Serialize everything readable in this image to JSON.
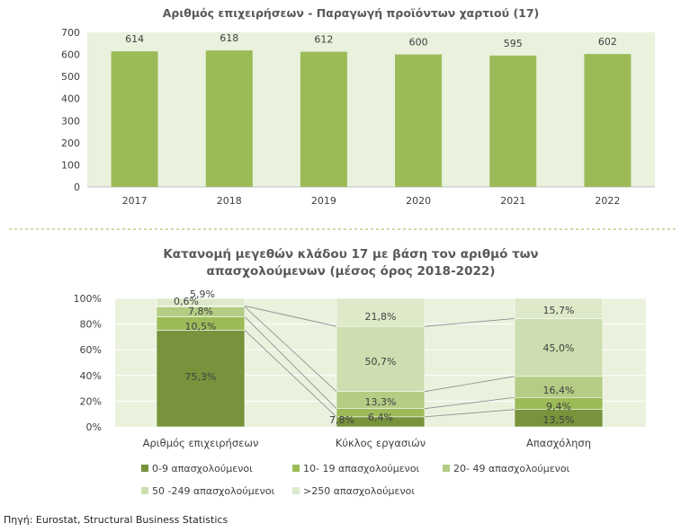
{
  "chart_data": [
    {
      "type": "bar",
      "title": "Αριθμός επιχειρήσεων - Παραγωγή προϊόντων χαρτιού (17)",
      "categories": [
        "2017",
        "2018",
        "2019",
        "2020",
        "2021",
        "2022"
      ],
      "values": [
        614,
        618,
        612,
        600,
        595,
        602
      ],
      "value_labels": [
        "614",
        "618",
        "612",
        "600",
        "595",
        "602"
      ],
      "ylim": [
        0,
        700
      ],
      "yticks": [
        "0",
        "100",
        "200",
        "300",
        "400",
        "500",
        "600",
        "700"
      ],
      "grid": false,
      "color": "#9bbb59",
      "plot_background": "#eaf1dd"
    },
    {
      "type": "bar",
      "stacked": true,
      "percent": true,
      "title_lines": [
        "Κατανομή μεγεθών κλάδου 17 με βάση τον αριθμό των",
        "απασχολούμενων (μέσος όρος 2018-2022)"
      ],
      "categories": [
        "Αριθμός επιχειρήσεων",
        "Κύκλος εργασιών",
        "Απασχόληση"
      ],
      "yticks": [
        "0%",
        "20%",
        "40%",
        "60%",
        "80%",
        "100%"
      ],
      "ylim": [
        0,
        100
      ],
      "grid": true,
      "legend_position": "bottom",
      "series": [
        {
          "name": "0-9 απασχολούμενοι",
          "color": "#77933c",
          "values": [
            75.3,
            7.8,
            13.5
          ],
          "labels": [
            "75,3%",
            "7,8%",
            "13,5%"
          ]
        },
        {
          "name": "10- 19 απασχολούμενοι",
          "color": "#9bbb59",
          "values": [
            10.5,
            6.4,
            9.4
          ],
          "labels": [
            "10,5%",
            "6,4%",
            "9,4%"
          ]
        },
        {
          "name": "20- 49 απασχολούμενοι",
          "color": "#b4cc84",
          "values": [
            7.8,
            13.3,
            16.4
          ],
          "labels": [
            "7,8%",
            "13,3%",
            "16,4%"
          ]
        },
        {
          "name": "50 -249 απασχολούμενοι",
          "color": "#cddfb0",
          "values": [
            0.6,
            50.7,
            45.0
          ],
          "labels": [
            "0,6%",
            "50,7%",
            "45,0%"
          ]
        },
        {
          "name": ">250 απασχολούμενοι",
          "color": "#dde9c9",
          "values": [
            5.9,
            21.8,
            15.7
          ],
          "labels": [
            "5,9%",
            "21,8%",
            "15,7%"
          ]
        }
      ],
      "plot_background": "#eaf1dd"
    }
  ],
  "source": "Πηγή: Eurostat, Structural Business Statistics"
}
